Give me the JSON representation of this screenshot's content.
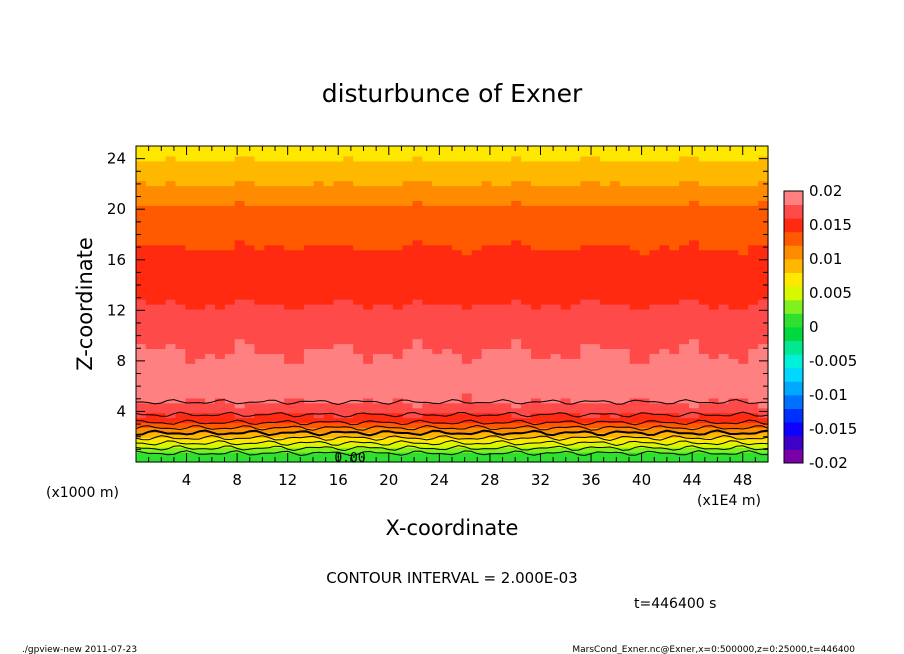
{
  "chart_data": {
    "type": "heatmap",
    "title": "disturbunce of Exner",
    "xlabel": "X-coordinate",
    "ylabel": "Z-coordinate",
    "x_unit_label": "(x1E4 m)",
    "y_unit_label": "(x1000 m)",
    "xlim": [
      0,
      50
    ],
    "ylim": [
      0,
      25
    ],
    "x_ticks": [
      4,
      8,
      12,
      16,
      20,
      24,
      28,
      32,
      36,
      40,
      44,
      48
    ],
    "y_ticks": [
      4,
      8,
      12,
      16,
      20,
      24
    ],
    "contour_interval_text": "CONTOUR INTERVAL = 2.000E-03",
    "contour_label": "0.00",
    "time_text": "t=446400 s",
    "colorbar": {
      "range": [
        -0.02,
        0.02
      ],
      "tick_labels": [
        "0.02",
        "0.015",
        "0.01",
        "0.005",
        "0",
        "-0.005",
        "-0.01",
        "-0.015",
        "-0.02"
      ],
      "levels": [
        {
          "from": -0.02,
          "to": -0.018,
          "color": "#7a00a8"
        },
        {
          "from": -0.018,
          "to": -0.016,
          "color": "#4000c8"
        },
        {
          "from": -0.016,
          "to": -0.014,
          "color": "#1000ff"
        },
        {
          "from": -0.014,
          "to": -0.012,
          "color": "#0030ff"
        },
        {
          "from": -0.012,
          "to": -0.01,
          "color": "#0070ff"
        },
        {
          "from": -0.01,
          "to": -0.008,
          "color": "#00a8ff"
        },
        {
          "from": -0.008,
          "to": -0.006,
          "color": "#00d8ff"
        },
        {
          "from": -0.006,
          "to": -0.004,
          "color": "#00f0d8"
        },
        {
          "from": -0.004,
          "to": -0.002,
          "color": "#00e890"
        },
        {
          "from": -0.002,
          "to": 0.0,
          "color": "#00d840"
        },
        {
          "from": 0.0,
          "to": 0.002,
          "color": "#30e030"
        },
        {
          "from": 0.002,
          "to": 0.004,
          "color": "#80f020"
        },
        {
          "from": 0.004,
          "to": 0.006,
          "color": "#d8f800"
        },
        {
          "from": 0.006,
          "to": 0.008,
          "color": "#ffe800"
        },
        {
          "from": 0.008,
          "to": 0.01,
          "color": "#ffb800"
        },
        {
          "from": 0.01,
          "to": 0.012,
          "color": "#ff8c00"
        },
        {
          "from": 0.012,
          "to": 0.014,
          "color": "#ff5a00"
        },
        {
          "from": 0.014,
          "to": 0.016,
          "color": "#ff2a10"
        },
        {
          "from": 0.016,
          "to": 0.018,
          "color": "#ff4a4a"
        },
        {
          "from": 0.018,
          "to": 0.02,
          "color": "#ff8080"
        }
      ]
    },
    "field_profile": [
      {
        "z": 0.0,
        "value": 0.0005
      },
      {
        "z": 0.6,
        "value": 0.0015
      },
      {
        "z": 1.2,
        "value": 0.0045
      },
      {
        "z": 1.8,
        "value": 0.0075
      },
      {
        "z": 2.4,
        "value": 0.0105
      },
      {
        "z": 3.0,
        "value": 0.0135
      },
      {
        "z": 3.5,
        "value": 0.0155
      },
      {
        "z": 4.0,
        "value": 0.0165
      },
      {
        "z": 5.0,
        "value": 0.0185
      },
      {
        "z": 6.5,
        "value": 0.0195
      },
      {
        "z": 8.0,
        "value": 0.0185
      },
      {
        "z": 9.5,
        "value": 0.0175
      },
      {
        "z": 11.5,
        "value": 0.0165
      },
      {
        "z": 13.5,
        "value": 0.0155
      },
      {
        "z": 16.0,
        "value": 0.0145
      },
      {
        "z": 18.0,
        "value": 0.0135
      },
      {
        "z": 20.0,
        "value": 0.0125
      },
      {
        "z": 21.5,
        "value": 0.0105
      },
      {
        "z": 22.5,
        "value": 0.0095
      },
      {
        "z": 23.5,
        "value": 0.0085
      },
      {
        "z": 24.3,
        "value": 0.0075
      },
      {
        "z": 25.0,
        "value": 0.0065
      }
    ]
  },
  "footer": {
    "left": "./gpview-new  2011-07-23",
    "right": "MarsCond_Exner.nc@Exner,x=0:500000,z=0:25000,t=446400"
  }
}
